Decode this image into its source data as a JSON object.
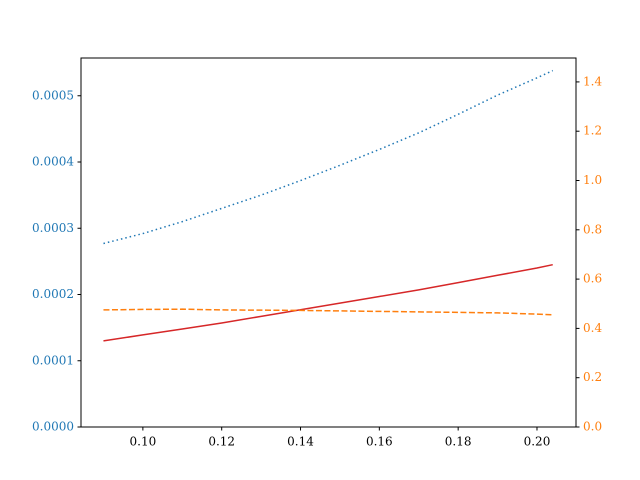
{
  "chart_data": {
    "type": "line",
    "x": [
      0.09,
      0.1,
      0.11,
      0.12,
      0.13,
      0.14,
      0.15,
      0.16,
      0.17,
      0.18,
      0.19,
      0.2,
      0.204
    ],
    "series": [
      {
        "color": "#1f77b4",
        "linestyle": "dotted",
        "axis": "y",
        "values": [
          0.000277,
          0.000292,
          0.00031,
          0.00033,
          0.00035,
          0.000372,
          0.000395,
          0.000419,
          0.000444,
          0.000472,
          0.000501,
          0.000527,
          0.000538
        ]
      },
      {
        "color": "#d62728",
        "linestyle": "solid",
        "axis": "y",
        "values": [
          0.00013,
          0.000139,
          0.000148,
          0.000157,
          0.000167,
          0.000177,
          0.000187,
          0.000197,
          0.000207,
          0.000218,
          0.000229,
          0.00024,
          0.000245
        ]
      },
      {
        "color": "#ff7f0e",
        "linestyle": "dashed",
        "axis": "y2",
        "values": [
          0.475,
          0.477,
          0.478,
          0.475,
          0.474,
          0.473,
          0.471,
          0.469,
          0.467,
          0.465,
          0.463,
          0.458,
          0.455
        ]
      }
    ],
    "xlim": [
      0.0843,
      0.2099
    ],
    "xticks": [
      {
        "value": 0.1,
        "label": "0.10"
      },
      {
        "value": 0.12,
        "label": "0.12"
      },
      {
        "value": 0.14,
        "label": "0.14"
      },
      {
        "value": 0.16,
        "label": "0.16"
      },
      {
        "value": 0.18,
        "label": "0.18"
      },
      {
        "value": 0.2,
        "label": "0.20"
      }
    ],
    "ylim": [
      0,
      0.000557
    ],
    "yticks": [
      {
        "value": 0,
        "label": "0.0000"
      },
      {
        "value": 0.0001,
        "label": "0.0001"
      },
      {
        "value": 0.0002,
        "label": "0.0002"
      },
      {
        "value": 0.0003,
        "label": "0.0003"
      },
      {
        "value": 0.0004,
        "label": "0.0004"
      },
      {
        "value": 0.0005,
        "label": "0.0005"
      }
    ],
    "ytick_color": "#1f77b4",
    "y2lim": [
      0,
      1.497
    ],
    "y2ticks": [
      {
        "value": 0,
        "label": "0.0"
      },
      {
        "value": 0.2,
        "label": "0.2"
      },
      {
        "value": 0.4,
        "label": "0.4"
      },
      {
        "value": 0.6,
        "label": "0.6"
      },
      {
        "value": 0.8,
        "label": "0.8"
      },
      {
        "value": 1.0,
        "label": "1.0"
      },
      {
        "value": 1.2,
        "label": "1.2"
      },
      {
        "value": 1.4,
        "label": "1.4"
      }
    ],
    "y2tick_color": "#ff7f0e"
  }
}
